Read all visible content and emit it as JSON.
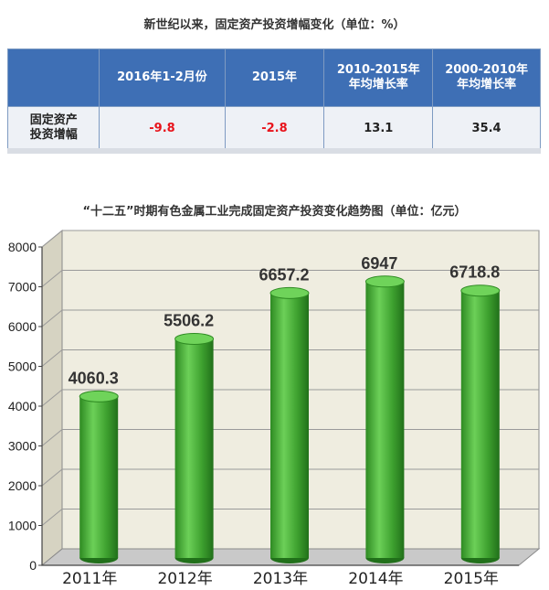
{
  "table": {
    "title": "新世纪以来，固定资产投资增幅变化（单位：%）",
    "headers": [
      "",
      "2016年1-2月份",
      "2015年",
      "2010-2015年\n年均增长率",
      "2000-2010年\n年均增长率"
    ],
    "row_label": "固定资产\n投资增幅",
    "values": [
      "-9.8",
      "-2.8",
      "13.1",
      "35.4"
    ]
  },
  "chart_data": {
    "type": "bar",
    "title": "“十二五”时期有色金属工业完成固定资产投资变化趋势图（单位：亿元）",
    "categories": [
      "2011年",
      "2012年",
      "2013年",
      "2014年",
      "2015年"
    ],
    "values": [
      4060.3,
      5506.2,
      6657.2,
      6947,
      6718.8
    ],
    "value_labels": [
      "4060.3",
      "5506.2",
      "6657.2",
      "6947",
      "6718.8"
    ],
    "ylim": [
      0,
      8000
    ],
    "yticks": [
      "0",
      "1000",
      "2000",
      "3000",
      "4000",
      "5000",
      "6000",
      "7000",
      "8000"
    ],
    "grid": true,
    "bar_color": "#3a9a2a",
    "bar_highlight": "#6fd35a",
    "wall_color": "#efede0"
  }
}
